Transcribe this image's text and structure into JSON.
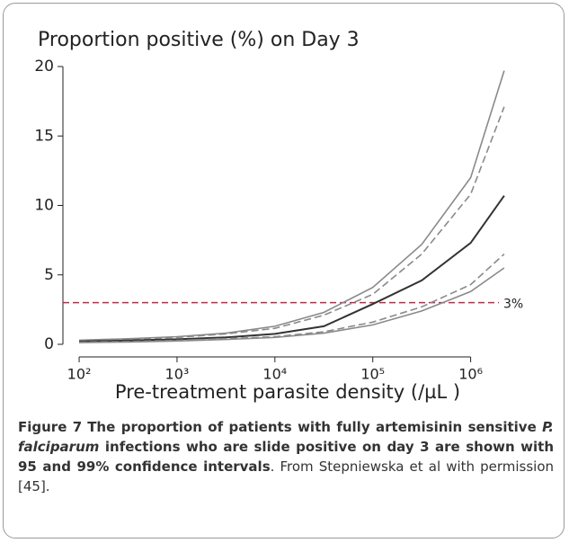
{
  "chart_data": {
    "type": "line",
    "title": "Proportion positive (%) on Day 3",
    "x_label": "Pre-treatment parasite density (/µL  )",
    "x": [
      100,
      316,
      1000,
      3162,
      10000,
      31623,
      100000,
      316228,
      1000000,
      2200000
    ],
    "series": [
      {
        "color": "#8a8a8a",
        "dashed": false,
        "values": [
          0.3,
          0.4,
          0.55,
          0.8,
          1.3,
          2.3,
          4.1,
          7.2,
          12,
          19.7
        ]
      },
      {
        "color": "#8a8a8a",
        "dashed": true,
        "values": [
          0.25,
          0.35,
          0.5,
          0.75,
          1.15,
          2.1,
          3.6,
          6.5,
          10.8,
          17.1
        ]
      },
      {
        "color": "#333333",
        "dashed": false,
        "values": [
          0.2,
          0.27,
          0.36,
          0.5,
          0.75,
          1.3,
          2.9,
          4.6,
          7.3,
          10.7
        ]
      },
      {
        "color": "#8a8a8a",
        "dashed": true,
        "values": [
          0.15,
          0.2,
          0.28,
          0.4,
          0.55,
          0.9,
          1.6,
          2.7,
          4.3,
          6.5
        ]
      },
      {
        "color": "#8a8a8a",
        "dashed": false,
        "values": [
          0.12,
          0.17,
          0.24,
          0.35,
          0.5,
          0.8,
          1.4,
          2.4,
          3.8,
          5.5
        ]
      }
    ],
    "reference": {
      "value": 3,
      "label": "3%",
      "color": "#c0284a"
    },
    "log_x": true,
    "xlim": [
      88,
      2400000
    ],
    "xticks": [
      {
        "value": 100,
        "label": "10²"
      },
      {
        "value": 1000,
        "label": "10³"
      },
      {
        "value": 10000,
        "label": "10⁴"
      },
      {
        "value": 100000,
        "label": "10⁵"
      },
      {
        "value": 1000000,
        "label": "10⁶"
      }
    ],
    "ylim": [
      0,
      20
    ],
    "yticks": [
      0,
      5,
      10,
      15,
      20
    ],
    "caption": {
      "label": "Figure 7",
      "bold_a": "The proportion of patients with fully artemisinin sensitive ",
      "italic": "P. falciparum",
      "bold_b": " infections who are slide positive on day 3 are shown with 95 and 99% confidence intervals",
      "rest": ". From Stepniewska et al with permission [45]."
    }
  }
}
